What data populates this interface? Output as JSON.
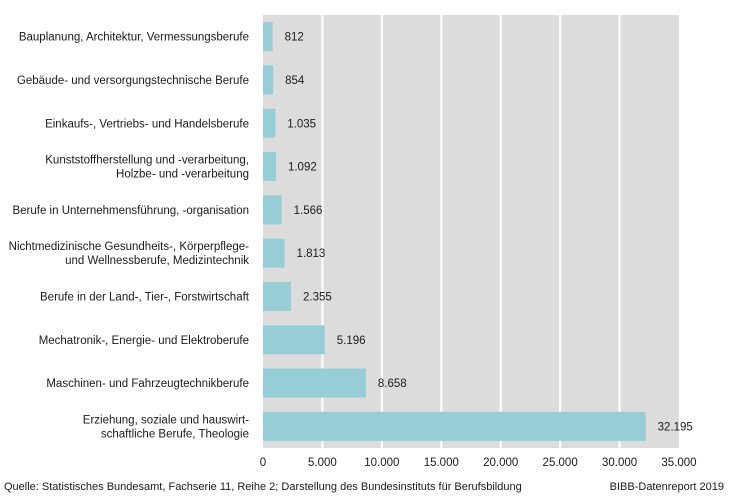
{
  "chart_data": {
    "type": "bar",
    "orientation": "horizontal",
    "categories": [
      [
        "Bauplanung, Architektur, Vermessungsberufe"
      ],
      [
        "Gebäude- und versorgungstechnische Berufe"
      ],
      [
        "Einkaufs-, Vertriebs- und Handelsberufe"
      ],
      [
        "Kunststoffherstellung und -verarbeitung,",
        "Holzbe- und -verarbeitung"
      ],
      [
        "Berufe in Unternehmensführung, -organisation"
      ],
      [
        "Nichtmedizinische Gesundheits-, Körperpflege-",
        "und Wellnessberufe, Medizintechnik"
      ],
      [
        "Berufe in der Land-, Tier-, Forstwirtschaft"
      ],
      [
        "Mechatronik-, Energie- und Elektroberufe"
      ],
      [
        "Maschinen- und Fahrzeugtechnikberufe"
      ],
      [
        "Erziehung, soziale und hauswirt-",
        "schaftliche Berufe, Theologie"
      ]
    ],
    "values": [
      812,
      854,
      1035,
      1092,
      1566,
      1813,
      2355,
      5196,
      8658,
      32195
    ],
    "value_labels": [
      "812",
      "854",
      "1.035",
      "1.092",
      "1.566",
      "1.813",
      "2.355",
      "5.196",
      "8.658",
      "32.195"
    ],
    "x_ticks": [
      0,
      5000,
      10000,
      15000,
      20000,
      25000,
      30000,
      35000
    ],
    "x_tick_labels": [
      "0",
      "5.000",
      "10.000",
      "15.000",
      "20.000",
      "25.000",
      "30.000",
      "35.000"
    ],
    "xlim": [
      0,
      35000
    ],
    "grid": true,
    "colors": {
      "bar": "#96cdd6",
      "plot_background": "#dcdcdc",
      "gridline": "#ffffff"
    }
  },
  "footer": {
    "source": "Quelle: Statistisches Bundesamt, Fachserie 11, Reihe 2; Darstellung des Bundesinstituts für Berufsbildung",
    "brand": "BIBB-Datenreport 2019"
  }
}
